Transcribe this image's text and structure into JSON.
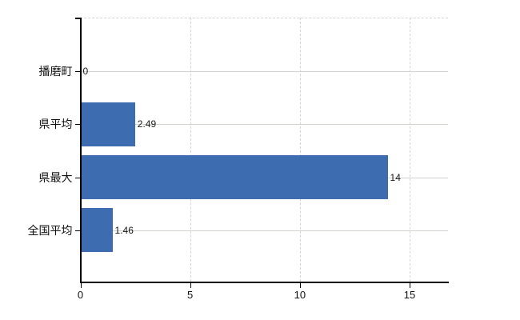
{
  "chart_data": {
    "type": "bar",
    "orientation": "horizontal",
    "categories": [
      "播磨町",
      "県平均",
      "県最大",
      "全国平均"
    ],
    "values": [
      0,
      2.49,
      14,
      1.46
    ],
    "value_labels": [
      "0",
      "2.49",
      "14",
      "1.46"
    ],
    "x_ticks": [
      0,
      5,
      10,
      15
    ],
    "x_tick_labels": [
      "0",
      "5",
      "10",
      "15"
    ],
    "xlim": [
      0,
      16.75
    ],
    "grid": true,
    "legend": false,
    "colors": {
      "bar": "#3E6CB0",
      "axis": "#000000",
      "text": "#111111",
      "h_gridline": "#cfd6cf",
      "v_gridline": "#d4d4d4",
      "background": "#ffffff"
    }
  }
}
